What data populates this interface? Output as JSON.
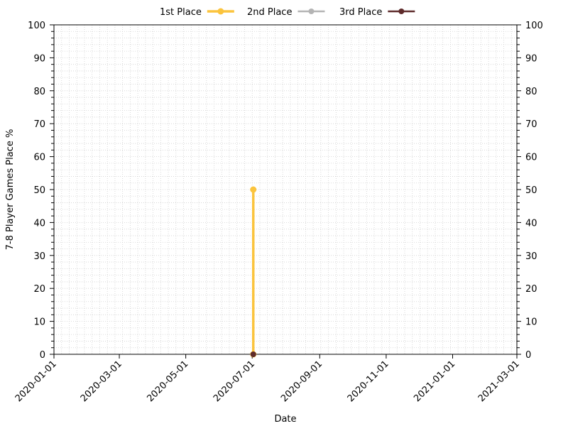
{
  "chart_data": {
    "type": "line",
    "xlabel": "Date",
    "ylabel": "7-8 Player Games Place %",
    "x_type": "date",
    "xlim": [
      "2020-01-01",
      "2021-03-01"
    ],
    "ylim": [
      0,
      100
    ],
    "x_ticks": [
      "2020-01-01",
      "2020-03-01",
      "2020-05-01",
      "2020-07-01",
      "2020-09-01",
      "2020-11-01",
      "2021-01-01",
      "2021-03-01"
    ],
    "y_ticks": [
      0,
      10,
      20,
      30,
      40,
      50,
      60,
      70,
      80,
      90,
      100
    ],
    "y_minor_step": 2,
    "grid": true,
    "secondary_y_axis": true,
    "legend_position": "top-center",
    "series": [
      {
        "name": "1st Place",
        "color": "#fbc43d",
        "x": [
          "2020-07-02",
          "2020-07-02"
        ],
        "y": [
          0,
          50
        ]
      },
      {
        "name": "2nd Place",
        "color": "#b4b4b4",
        "x": [],
        "y": []
      },
      {
        "name": "3rd Place",
        "color": "#5e2b2b",
        "x": [
          "2020-07-02"
        ],
        "y": [
          0
        ]
      }
    ]
  }
}
